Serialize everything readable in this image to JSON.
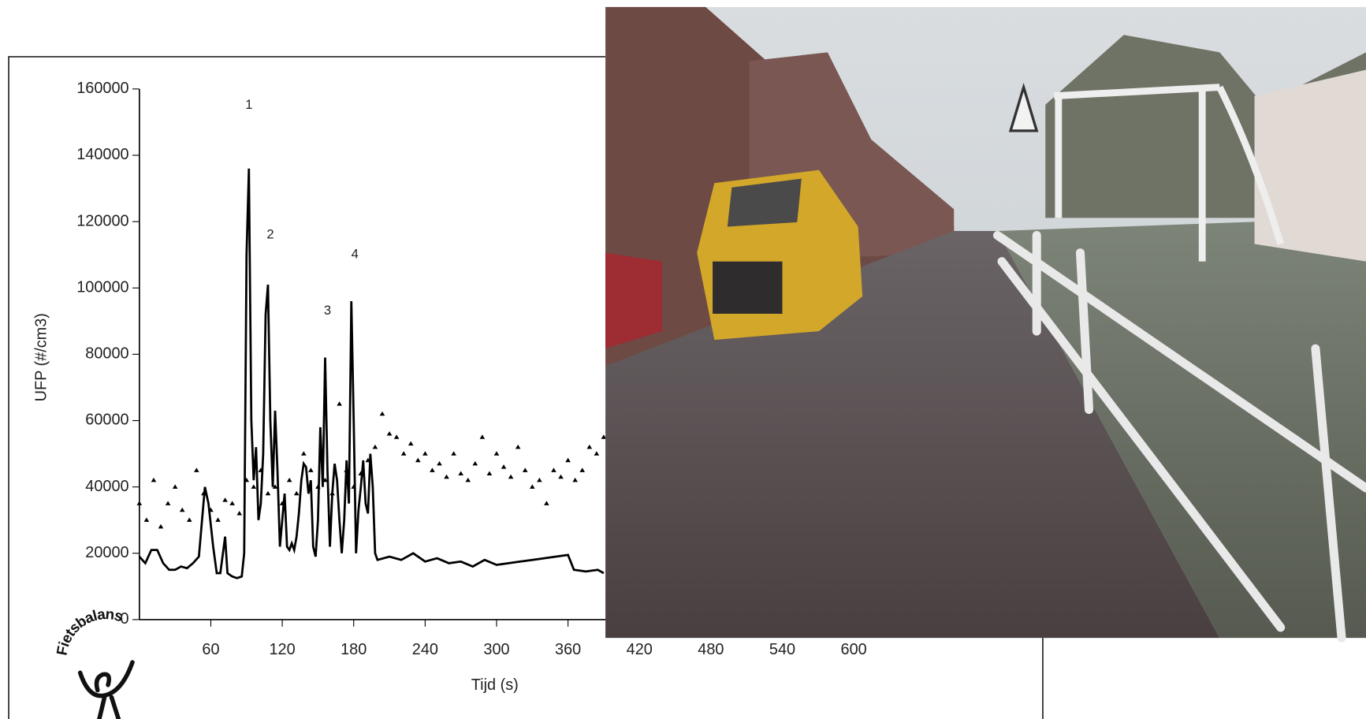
{
  "chart_data": {
    "type": "line",
    "y_label": "UFP (#/cm3)",
    "x_label": "Tijd (s)",
    "xlim": [
      0,
      720
    ],
    "xticks": [
      60,
      120,
      180,
      240,
      300,
      360,
      420,
      480,
      540,
      600
    ],
    "ylim": [
      0,
      160000
    ],
    "yticks": [
      0,
      20000,
      40000,
      60000,
      80000,
      100000,
      120000,
      140000,
      160000
    ],
    "annotations": [
      {
        "text": "1",
        "x": 92,
        "y": 155000
      },
      {
        "text": "2",
        "x": 110,
        "y": 116000
      },
      {
        "text": "3",
        "x": 158,
        "y": 93000
      },
      {
        "text": "4",
        "x": 181,
        "y": 110000
      }
    ],
    "logo": "Fietsbalans",
    "series": [
      {
        "style": "solid",
        "color": "#000000",
        "x": [
          0,
          5,
          10,
          15,
          20,
          25,
          30,
          35,
          40,
          45,
          50,
          55,
          58,
          62,
          65,
          68,
          72,
          74,
          78,
          82,
          86,
          88,
          90,
          92,
          94,
          96,
          98,
          100,
          102,
          104,
          106,
          108,
          110,
          112,
          114,
          116,
          118,
          120,
          122,
          124,
          126,
          128,
          130,
          132,
          134,
          136,
          138,
          140,
          142,
          144,
          146,
          148,
          150,
          152,
          154,
          156,
          158,
          160,
          162,
          164,
          166,
          168,
          170,
          172,
          174,
          176,
          178,
          180,
          182,
          184,
          186,
          188,
          190,
          192,
          194,
          196,
          198,
          200,
          210,
          220,
          230,
          240,
          250,
          260,
          270,
          280,
          290,
          300,
          310,
          320,
          330,
          340,
          350,
          360,
          365,
          375,
          385,
          390
        ],
        "values": [
          19000,
          17000,
          21000,
          21000,
          17000,
          15000,
          15000,
          16000,
          15500,
          17000,
          19000,
          40000,
          35000,
          22000,
          14000,
          14000,
          25000,
          14000,
          13000,
          12500,
          13000,
          20000,
          110000,
          136000,
          60000,
          42000,
          52000,
          30000,
          35000,
          50000,
          92000,
          101000,
          60000,
          40000,
          63000,
          45000,
          22000,
          30000,
          38000,
          22000,
          21000,
          23000,
          21000,
          25000,
          32000,
          42000,
          47000,
          46000,
          38000,
          42000,
          22000,
          19000,
          30000,
          58000,
          40000,
          79000,
          45000,
          22000,
          38000,
          47000,
          42000,
          30000,
          20000,
          30000,
          48000,
          35000,
          96000,
          60000,
          20000,
          33000,
          40000,
          48000,
          35000,
          32000,
          50000,
          40000,
          20000,
          18000,
          19000,
          18000,
          20000,
          17500,
          18500,
          17000,
          17500,
          16000,
          18000,
          16500,
          17000,
          17500,
          18000,
          18500,
          19000,
          19500,
          15000,
          14500,
          15000,
          14000
        ]
      },
      {
        "style": "triangles",
        "color": "#000000",
        "x": [
          0,
          6,
          12,
          18,
          24,
          30,
          36,
          42,
          48,
          54,
          60,
          66,
          72,
          78,
          84,
          90,
          96,
          102,
          108,
          114,
          120,
          126,
          132,
          138,
          144,
          150,
          156,
          162,
          168,
          174,
          180,
          186,
          192,
          198,
          204,
          210,
          216,
          222,
          228,
          234,
          240,
          246,
          252,
          258,
          264,
          270,
          276,
          282,
          288,
          294,
          300,
          306,
          312,
          318,
          324,
          330,
          336,
          342,
          348,
          354,
          360,
          366,
          372,
          378,
          384,
          390
        ],
        "values": [
          35000,
          30000,
          42000,
          28000,
          35000,
          40000,
          33000,
          30000,
          45000,
          38000,
          33000,
          30000,
          36000,
          35000,
          32000,
          42000,
          40000,
          45000,
          38000,
          40000,
          35000,
          42000,
          38000,
          50000,
          45000,
          40000,
          42000,
          38000,
          65000,
          45000,
          40000,
          44000,
          48000,
          52000,
          62000,
          56000,
          55000,
          50000,
          53000,
          48000,
          50000,
          45000,
          47000,
          43000,
          50000,
          44000,
          42000,
          47000,
          55000,
          44000,
          50000,
          46000,
          43000,
          52000,
          45000,
          40000,
          42000,
          35000,
          45000,
          43000,
          48000,
          42000,
          45000,
          52000,
          50000,
          55000
        ]
      }
    ]
  }
}
